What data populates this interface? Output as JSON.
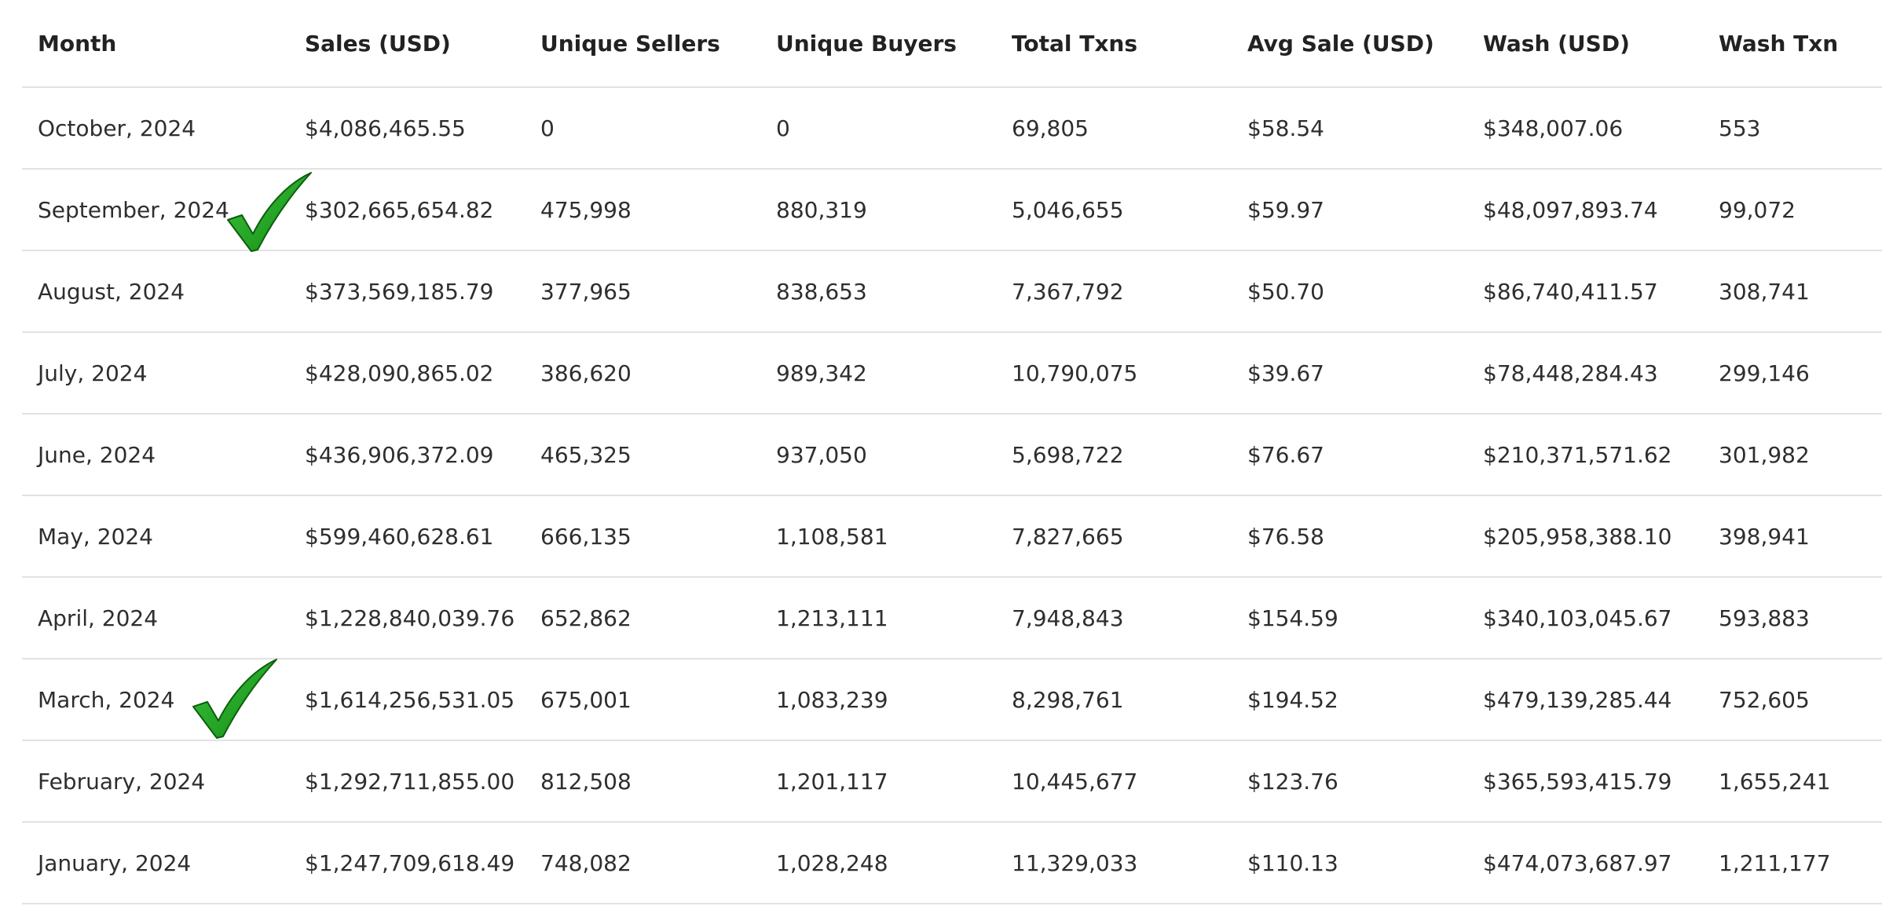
{
  "table": {
    "headers": [
      "Month",
      "Sales (USD)",
      "Unique Sellers",
      "Unique Buyers",
      "Total Txns",
      "Avg Sale (USD)",
      "Wash (USD)",
      "Wash Txn"
    ],
    "rows": [
      [
        "October, 2024",
        "$4,086,465.55",
        "0",
        "0",
        "69,805",
        "$58.54",
        "$348,007.06",
        "553"
      ],
      [
        "September, 2024",
        "$302,665,654.82",
        "475,998",
        "880,319",
        "5,046,655",
        "$59.97",
        "$48,097,893.74",
        "99,072"
      ],
      [
        "August, 2024",
        "$373,569,185.79",
        "377,965",
        "838,653",
        "7,367,792",
        "$50.70",
        "$86,740,411.57",
        "308,741"
      ],
      [
        "July, 2024",
        "$428,090,865.02",
        "386,620",
        "989,342",
        "10,790,075",
        "$39.67",
        "$78,448,284.43",
        "299,146"
      ],
      [
        "June, 2024",
        "$436,906,372.09",
        "465,325",
        "937,050",
        "5,698,722",
        "$76.67",
        "$210,371,571.62",
        "301,982"
      ],
      [
        "May, 2024",
        "$599,460,628.61",
        "666,135",
        "1,108,581",
        "7,827,665",
        "$76.58",
        "$205,958,388.10",
        "398,941"
      ],
      [
        "April, 2024",
        "$1,228,840,039.76",
        "652,862",
        "1,213,111",
        "7,948,843",
        "$154.59",
        "$340,103,045.67",
        "593,883"
      ],
      [
        "March, 2024",
        "$1,614,256,531.05",
        "675,001",
        "1,083,239",
        "8,298,761",
        "$194.52",
        "$479,139,285.44",
        "752,605"
      ],
      [
        "February, 2024",
        "$1,292,711,855.00",
        "812,508",
        "1,201,117",
        "10,445,677",
        "$123.76",
        "$365,593,415.79",
        "1,655,241"
      ],
      [
        "January, 2024",
        "$1,247,709,618.49",
        "748,082",
        "1,028,248",
        "11,329,033",
        "$110.13",
        "$474,073,687.97",
        "1,211,177"
      ]
    ]
  },
  "annotations": {
    "checkmark_color": "#1fa01f",
    "checkmark_dark": "#0d5e0d",
    "checked_months": [
      "September, 2024",
      "March, 2024"
    ]
  }
}
